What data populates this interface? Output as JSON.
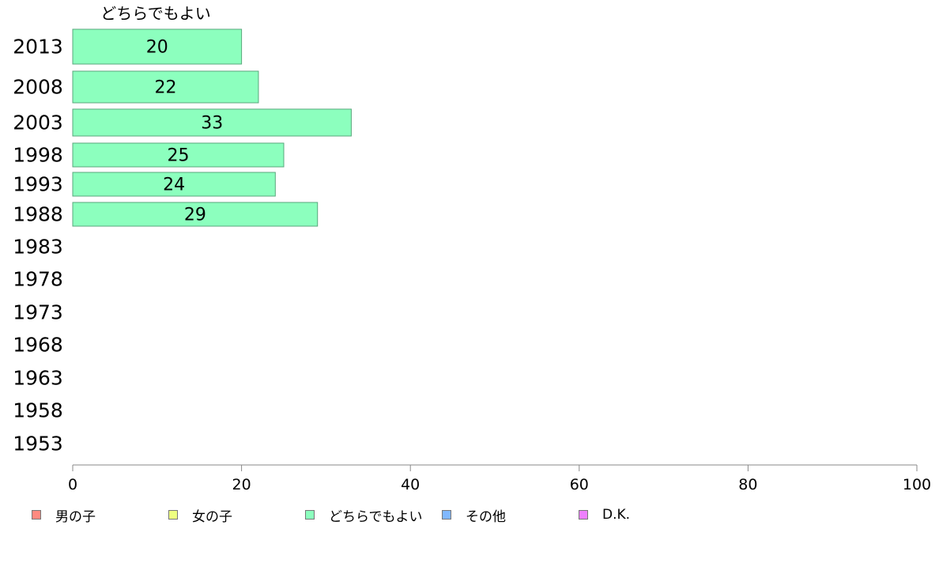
{
  "chart_data": {
    "type": "bar",
    "orientation": "horizontal",
    "categories": [
      "2013",
      "2008",
      "2003",
      "1998",
      "1993",
      "1988",
      "1983",
      "1978",
      "1973",
      "1968",
      "1963",
      "1958",
      "1953"
    ],
    "series": [
      {
        "name": "どちらでもよい",
        "color": "#8cffbe",
        "values": [
          20,
          22,
          33,
          25,
          24,
          29,
          null,
          null,
          null,
          null,
          null,
          null,
          null
        ]
      }
    ],
    "series_header": "どちらでもよい",
    "xlim": [
      0,
      100
    ],
    "xticks": [
      0,
      20,
      40,
      60,
      80,
      100
    ],
    "xlabel": "",
    "ylabel": "",
    "grid": false,
    "legend": {
      "placement": "bottom",
      "items": [
        {
          "label": "男の子",
          "color": "#ff8a80"
        },
        {
          "label": "女の子",
          "color": "#eeff80"
        },
        {
          "label": "どちらでもよい",
          "color": "#8cffbe"
        },
        {
          "label": "その他",
          "color": "#80b8ff"
        },
        {
          "label": "D.K.",
          "color": "#ee80ff"
        }
      ]
    }
  }
}
